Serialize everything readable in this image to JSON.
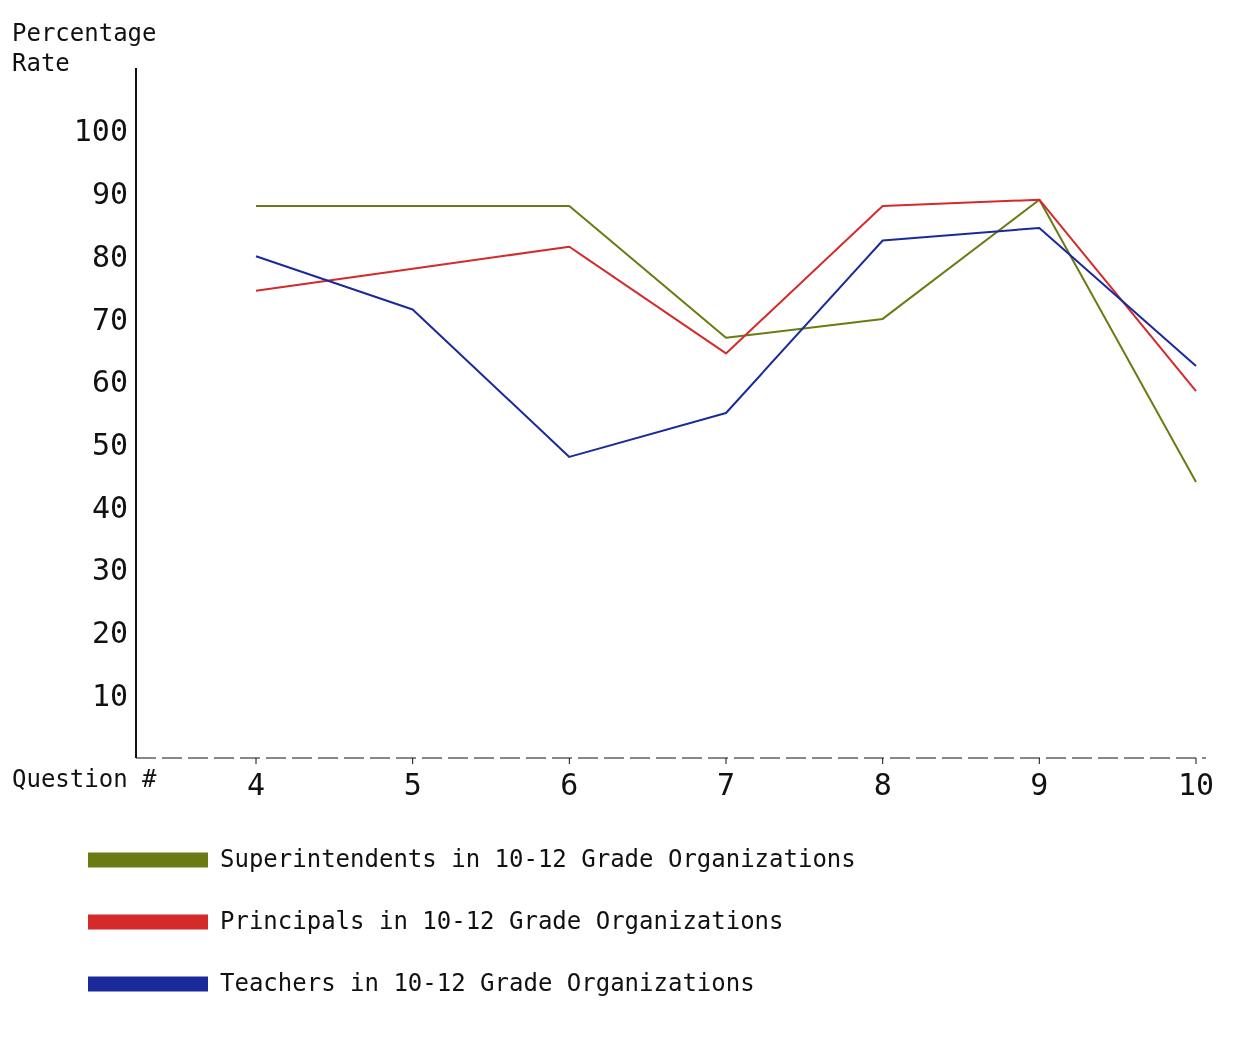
{
  "chart_data": {
    "type": "line",
    "xlabel": "Question #",
    "ylabel": "Percentage Rate",
    "categories": [
      "4",
      "5",
      "6",
      "7",
      "8",
      "9",
      "10"
    ],
    "series": [
      {
        "name": "Superintendents in 10-12 Grade Organizations",
        "color": "#6b7a12",
        "values": [
          88,
          88,
          88,
          67,
          70,
          89,
          44
        ]
      },
      {
        "name": "Principals in 10-12 Grade Organizations",
        "color": "#d42a2a",
        "values": [
          74.5,
          78,
          81.5,
          64.5,
          88,
          89,
          58.5
        ]
      },
      {
        "name": "Teachers in 10-12 Grade Organizations",
        "color": "#1a2a9a",
        "values": [
          80,
          71.5,
          48,
          55,
          82.5,
          84.5,
          62.5
        ]
      }
    ],
    "ylim": [
      0,
      110
    ],
    "yticks": [
      10,
      20,
      30,
      40,
      50,
      60,
      70,
      80,
      90,
      100
    ],
    "grid": false,
    "legend": "bottom",
    "marker": "none",
    "line_style": "solid"
  }
}
